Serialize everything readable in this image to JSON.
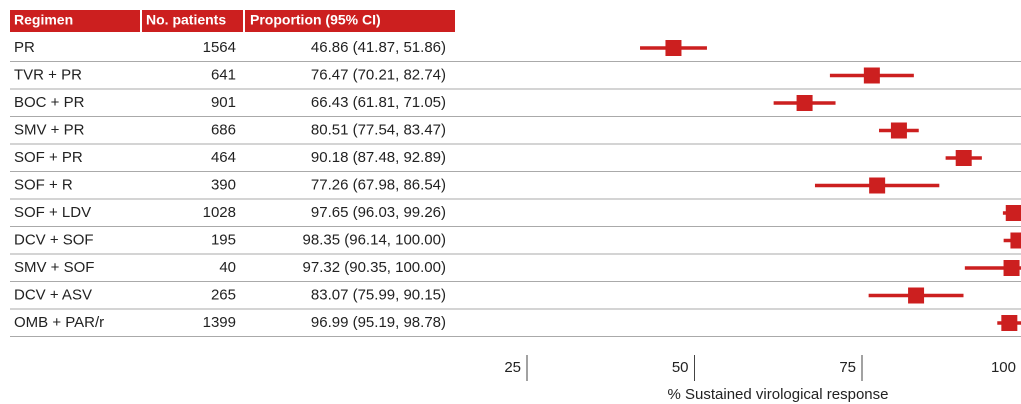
{
  "chart_data": {
    "type": "forest",
    "columns": [
      "Regimen",
      "No. patients",
      "Proportion (95% CI)"
    ],
    "categories": [
      "PR",
      "TVR + PR",
      "BOC + PR",
      "SMV + PR",
      "SOF + PR",
      "SOF + R",
      "SOF + LDV",
      "DCV + SOF",
      "SMV + SOF",
      "DCV + ASV",
      "OMB + PAR/r"
    ],
    "patients": [
      1564,
      641,
      901,
      686,
      464,
      390,
      1028,
      195,
      40,
      265,
      1399
    ],
    "values": [
      46.86,
      76.47,
      66.43,
      80.51,
      90.18,
      77.26,
      97.65,
      98.35,
      97.32,
      83.07,
      96.99
    ],
    "lower": [
      41.87,
      70.21,
      61.81,
      77.54,
      87.48,
      67.98,
      96.03,
      96.14,
      90.35,
      75.99,
      95.19
    ],
    "upper": [
      51.86,
      82.74,
      71.05,
      83.47,
      92.89,
      86.54,
      99.26,
      100.0,
      100.0,
      90.15,
      98.78
    ],
    "value_labels": [
      "46.86 (41.87, 51.86)",
      "76.47 (70.21, 82.74)",
      "66.43 (61.81, 71.05)",
      "80.51 (77.54, 83.47)",
      "90.18 (87.48, 92.89)",
      "77.26 (67.98, 86.54)",
      "97.65 (96.03, 99.26)",
      "98.35 (96.14, 100.00)",
      "97.32 (90.35, 100.00)",
      "83.07 (75.99, 90.15)",
      "96.99 (95.19, 98.78)"
    ],
    "xlim": [
      25,
      100
    ],
    "xticks": [
      25,
      50,
      75,
      100
    ],
    "xlabel": "% Sustained virological response",
    "color": "#cc1f1f"
  }
}
